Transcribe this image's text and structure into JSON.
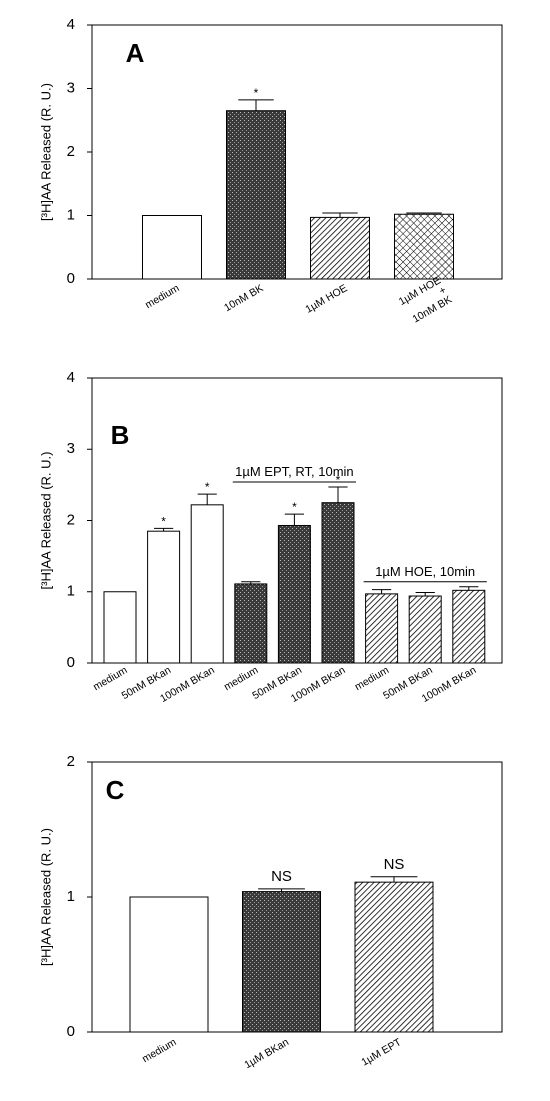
{
  "chart_data": [
    {
      "type": "bar",
      "panel_label": "A",
      "ylabel": "[³H]AA Released (R. U.)",
      "categories": [
        "medium",
        "10nM BK",
        "1µM HOE",
        [
          "1µM HOE",
          "+",
          "10nM BK"
        ]
      ],
      "values": [
        1.0,
        2.65,
        0.97,
        1.02
      ],
      "errors": [
        null,
        0.17,
        0.07,
        0.02
      ],
      "fills": [
        "white",
        "dark",
        "hatch",
        "cross"
      ],
      "annotations": [
        null,
        "*",
        null,
        null
      ],
      "ylim": [
        0,
        4
      ],
      "yticks": [
        0,
        1,
        2,
        3,
        4
      ]
    },
    {
      "type": "bar",
      "panel_label": "B",
      "ylabel": "[³H]AA Released (R. U.)",
      "categories": [
        "medium",
        "50nM BKan",
        "100nM BKan",
        "medium",
        "50nM BKan",
        "100nM BKan",
        "medium",
        "50nM BKan",
        "100nM BKan"
      ],
      "values": [
        1.0,
        1.85,
        2.22,
        1.11,
        1.93,
        2.25,
        0.97,
        0.94,
        1.02
      ],
      "errors": [
        null,
        0.04,
        0.15,
        0.03,
        0.16,
        0.22,
        0.06,
        0.05,
        0.05
      ],
      "fills": [
        "white",
        "white",
        "white",
        "dark",
        "dark",
        "dark",
        "hatch",
        "hatch",
        "hatch"
      ],
      "annotations": [
        null,
        "*",
        "*",
        null,
        "*",
        "*",
        null,
        null,
        null
      ],
      "groups": [
        {
          "label": "1µM EPT, RT, 10min",
          "start": 3,
          "end": 5
        },
        {
          "label": "1µM HOE, 10min",
          "start": 6,
          "end": 8
        }
      ],
      "ylim": [
        0,
        4
      ],
      "yticks": [
        0,
        1,
        2,
        3,
        4
      ]
    },
    {
      "type": "bar",
      "panel_label": "C",
      "ylabel": "[³H]AA Released (R. U.)",
      "categories": [
        "medium",
        "1µM BKan",
        "1µM EPT"
      ],
      "values": [
        1.0,
        1.04,
        1.11
      ],
      "errors": [
        null,
        0.02,
        0.04
      ],
      "fills": [
        "white",
        "dark",
        "hatch"
      ],
      "annotations": [
        null,
        "NS",
        "NS"
      ],
      "ylim": [
        0,
        2
      ],
      "yticks": [
        0,
        1,
        2
      ]
    }
  ]
}
